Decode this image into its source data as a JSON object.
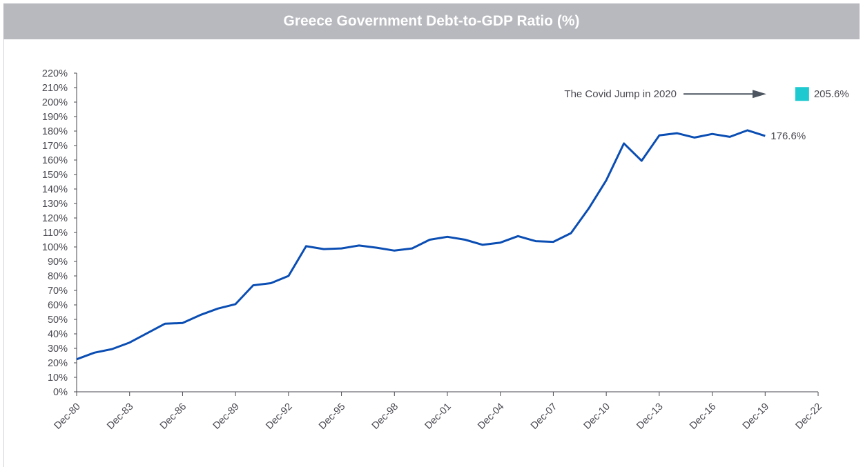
{
  "title": "Greece Government Debt-to-GDP Ratio (%)",
  "colors": {
    "header_bg": "#b8b9be",
    "line": "#0a4db3",
    "marker": "#1ec9cf",
    "axis": "#4a4a52",
    "arrow": "#4d5560"
  },
  "chart_data": {
    "type": "line",
    "title": "Greece Government Debt-to-GDP Ratio (%)",
    "xlabel": "",
    "ylabel": "",
    "ylim": [
      0,
      220
    ],
    "y_ticks": [
      0,
      10,
      20,
      30,
      40,
      50,
      60,
      70,
      80,
      90,
      100,
      110,
      120,
      130,
      140,
      150,
      160,
      170,
      180,
      190,
      200,
      210,
      220
    ],
    "y_tick_suffix": "%",
    "xlim": [
      1980,
      2022
    ],
    "x_ticks": [
      {
        "year": 1980,
        "label": "Dec-80"
      },
      {
        "year": 1983,
        "label": "Dec-83"
      },
      {
        "year": 1986,
        "label": "Dec-86"
      },
      {
        "year": 1989,
        "label": "Dec-89"
      },
      {
        "year": 1992,
        "label": "Dec-92"
      },
      {
        "year": 1995,
        "label": "Dec-95"
      },
      {
        "year": 1998,
        "label": "Dec-98"
      },
      {
        "year": 2001,
        "label": "Dec-01"
      },
      {
        "year": 2004,
        "label": "Dec-04"
      },
      {
        "year": 2007,
        "label": "Dec-07"
      },
      {
        "year": 2010,
        "label": "Dec-10"
      },
      {
        "year": 2013,
        "label": "Dec-13"
      },
      {
        "year": 2016,
        "label": "Dec-16"
      },
      {
        "year": 2019,
        "label": "Dec-19"
      },
      {
        "year": 2022,
        "label": "Dec-22"
      }
    ],
    "grid": false,
    "series": [
      {
        "x": [
          1980,
          1981,
          1982,
          1983,
          1984,
          1985,
          1986,
          1987,
          1988,
          1989,
          1990,
          1991,
          1992,
          1993,
          1994,
          1995,
          1996,
          1997,
          1998,
          1999,
          2000,
          2001,
          2002,
          2003,
          2004,
          2005,
          2006,
          2007,
          2008,
          2009,
          2010,
          2011,
          2012,
          2013,
          2014,
          2015,
          2016,
          2017,
          2018,
          2019
        ],
        "values": [
          22.5,
          27.0,
          29.5,
          34.0,
          40.5,
          47.0,
          47.5,
          53.0,
          57.5,
          60.5,
          73.5,
          75.0,
          80.0,
          100.5,
          98.5,
          99.0,
          101.0,
          99.5,
          97.5,
          99.0,
          105.0,
          107.0,
          105.0,
          101.5,
          103.0,
          107.5,
          104.0,
          103.5,
          109.5,
          126.5,
          146.0,
          171.5,
          159.5,
          177.0,
          178.5,
          175.5,
          178.0,
          176.0,
          180.5,
          176.6
        ]
      }
    ],
    "end_label": "176.6%",
    "annotation": {
      "text": "The Covid Jump in 2020",
      "year": 2020,
      "value": 205.6,
      "value_label": "205.6%"
    }
  }
}
